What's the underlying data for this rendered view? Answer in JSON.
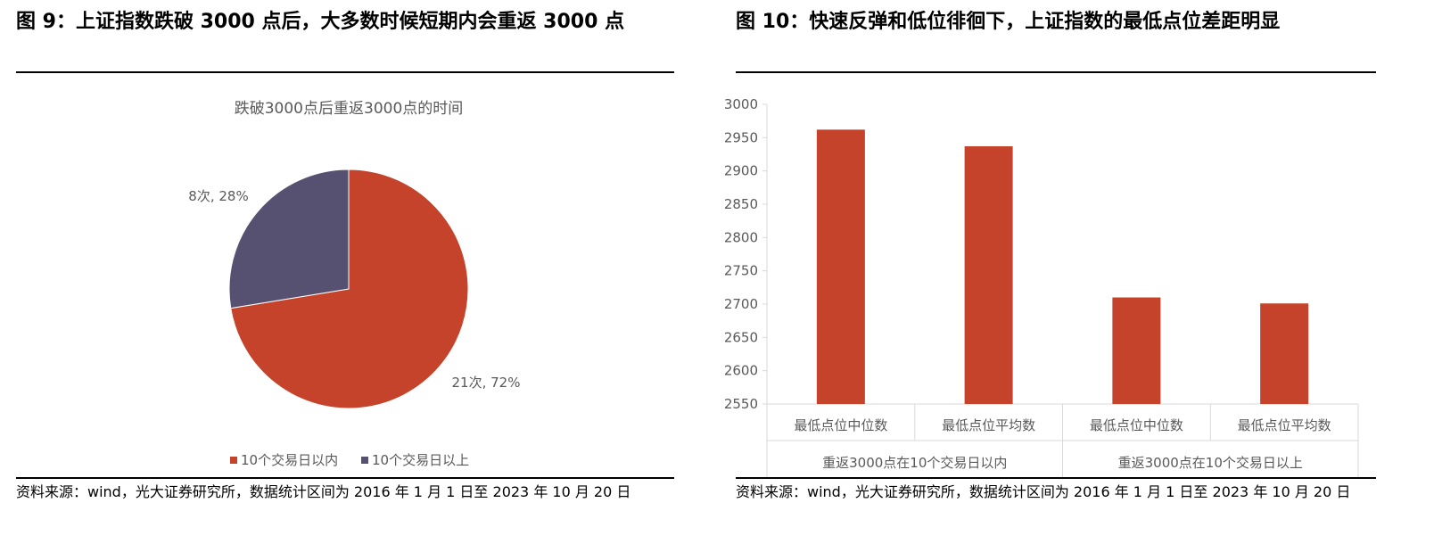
{
  "left": {
    "figure_title": "图 9：上证指数跌破 3000 点后，大多数时候短期内会重返 3000 点",
    "source": "资料来源：wind，光大证券研究所，数据统计区间为 2016 年 1 月 1 日至 2023 年 10 月 20 日"
  },
  "right": {
    "figure_title": "图 10：快速反弹和低位徘徊下，上证指数的最低点位差距明显",
    "source": "资料来源：wind，光大证券研究所，数据统计区间为 2016 年 1 月 1 日至 2023 年 10 月 20 日"
  },
  "colors": {
    "red": "#C5432A",
    "purple": "#565170"
  },
  "chart_data": [
    {
      "type": "pie",
      "title": "跌破3000点后重返3000点的时间",
      "slices": [
        {
          "name": "10个交易日以内",
          "value": 21,
          "percent": 72,
          "label": "21次, 72%",
          "color": "#C5432A"
        },
        {
          "name": "10个交易日以上",
          "value": 8,
          "percent": 28,
          "label": "8次, 28%",
          "color": "#565170"
        }
      ],
      "legend_position": "bottom"
    },
    {
      "type": "bar",
      "categories": [
        "最低点位中位数",
        "最低点位平均数",
        "最低点位中位数",
        "最低点位平均数"
      ],
      "groups": [
        {
          "label": "重返3000点在10个交易日以内",
          "span": 2
        },
        {
          "label": "重返3000点在10个交易日以上",
          "span": 2
        }
      ],
      "values": [
        2962,
        2937,
        2710,
        2701
      ],
      "ylim": [
        2550,
        3000
      ],
      "yticks": [
        "3000",
        "2950",
        "2900",
        "2850",
        "2800",
        "2750",
        "2700",
        "2650",
        "2600",
        "2550"
      ],
      "color": "#C5432A",
      "grid": false
    }
  ]
}
